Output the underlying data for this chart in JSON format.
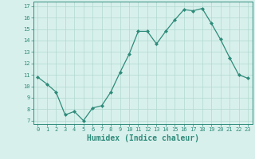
{
  "x": [
    0,
    1,
    2,
    3,
    4,
    5,
    6,
    7,
    8,
    9,
    10,
    11,
    12,
    13,
    14,
    15,
    16,
    17,
    18,
    19,
    20,
    21,
    22,
    23
  ],
  "y": [
    10.8,
    10.2,
    9.5,
    7.5,
    7.8,
    7.0,
    8.1,
    8.3,
    9.5,
    11.2,
    12.8,
    14.8,
    14.8,
    13.7,
    14.8,
    15.8,
    16.7,
    16.6,
    16.8,
    15.5,
    14.1,
    12.5,
    11.0,
    10.7
  ],
  "line_color": "#2e8b7a",
  "marker": "D",
  "marker_size": 2,
  "bg_color": "#d8f0ec",
  "grid_major_color": "#b0d8d0",
  "grid_minor_color": "#c8e8e2",
  "xlabel": "Humidex (Indice chaleur)",
  "ylabel_ticks": [
    7,
    8,
    9,
    10,
    11,
    12,
    13,
    14,
    15,
    16,
    17
  ],
  "xlim": [
    -0.5,
    23.5
  ],
  "ylim": [
    6.7,
    17.4
  ],
  "xlabel_fontsize": 7,
  "tick_fontsize": 5,
  "linewidth": 0.9
}
